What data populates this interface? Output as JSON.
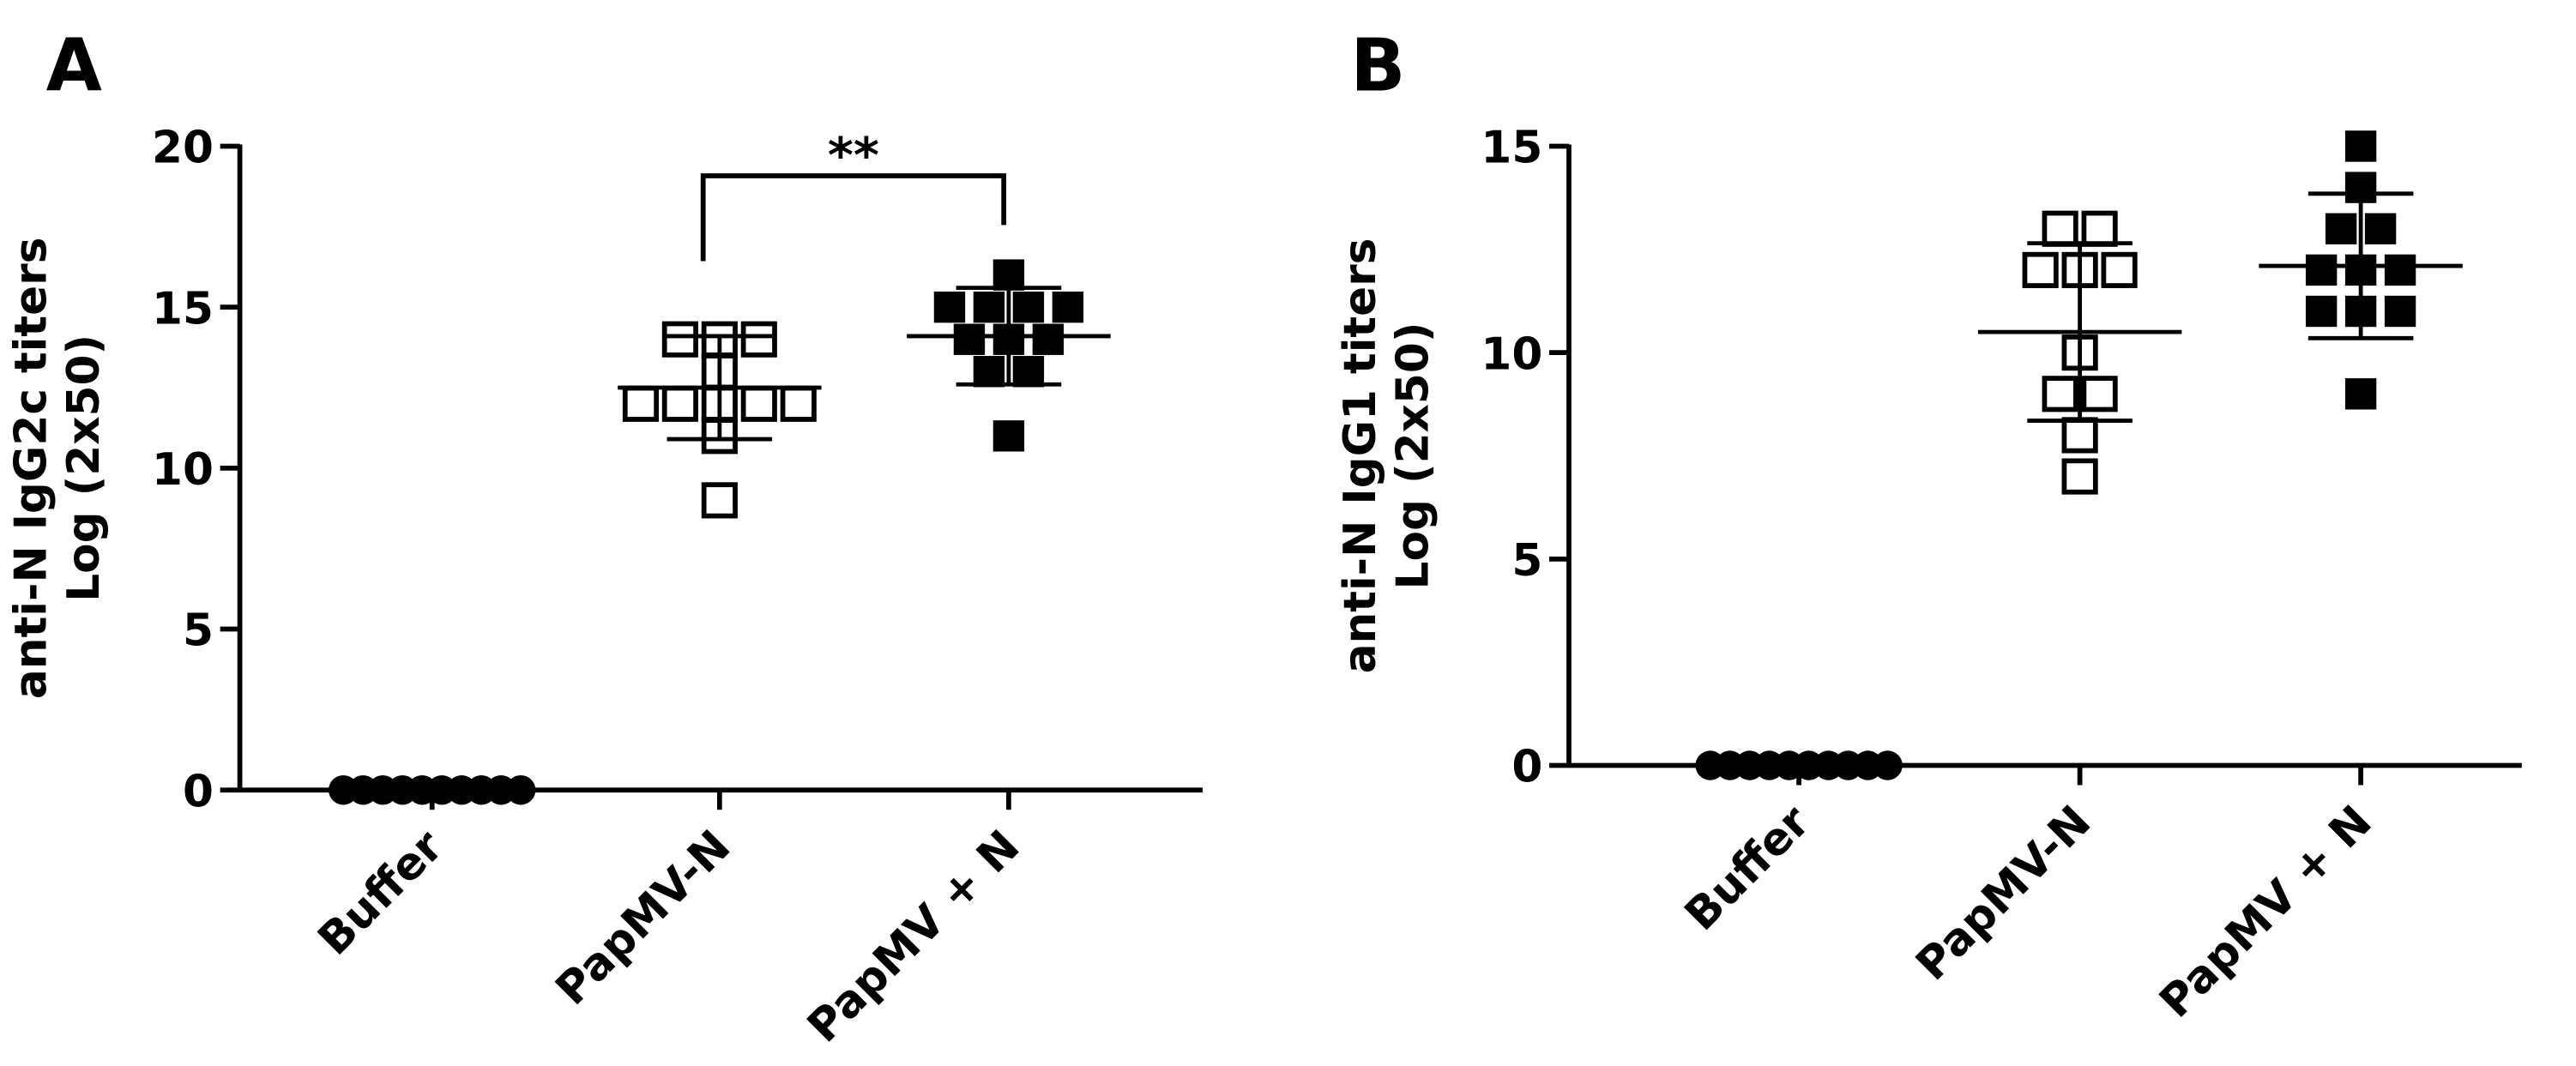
{
  "chart_data": [
    {
      "type": "strip",
      "panel": "A",
      "ylabel": [
        "anti-N IgG2c titers",
        "Log (2x50)"
      ],
      "categories": [
        "Buffer",
        "PapMV-N",
        "PapMV + N"
      ],
      "groups": [
        {
          "name": "Buffer",
          "marker": "circle",
          "color": "#000000",
          "values": [
            0,
            0,
            0,
            0,
            0,
            0,
            0,
            0,
            0,
            0
          ]
        },
        {
          "name": "PapMV-N",
          "marker": "open-square",
          "color": "#000000",
          "values": [
            14,
            14,
            14,
            13,
            12,
            12,
            12,
            12,
            12,
            11,
            9
          ],
          "mean": 12.5,
          "sd": 1.6
        },
        {
          "name": "PapMV + N",
          "marker": "square",
          "color": "#000000",
          "values": [
            16,
            15,
            15,
            15,
            15,
            14,
            14,
            14,
            13,
            13,
            11
          ],
          "mean": 14.1,
          "sd": 1.5
        }
      ],
      "ylim": [
        0,
        20
      ],
      "yticks": [
        0,
        5,
        10,
        15,
        20
      ],
      "annotations": [
        {
          "text": "**",
          "between": [
            1,
            2
          ]
        }
      ]
    },
    {
      "type": "strip",
      "panel": "B",
      "ylabel": [
        "anti-N IgG1 titers",
        "Log (2x50)"
      ],
      "categories": [
        "Buffer",
        "PapMV-N",
        "PapMV + N"
      ],
      "groups": [
        {
          "name": "Buffer",
          "marker": "circle",
          "color": "#000000",
          "values": [
            0,
            0,
            0,
            0,
            0,
            0,
            0,
            0,
            0,
            0
          ]
        },
        {
          "name": "PapMV-N",
          "marker": "open-square",
          "color": "#000000",
          "values": [
            13,
            13,
            12,
            12,
            12,
            10,
            9,
            9,
            8,
            7
          ],
          "mean": 10.5,
          "sd": 2.15
        },
        {
          "name": "PapMV + N",
          "marker": "square",
          "color": "#000000",
          "values": [
            15,
            14,
            13,
            13,
            12,
            12,
            12,
            11,
            11,
            11,
            9
          ],
          "mean": 12.1,
          "sd": 1.75
        }
      ],
      "ylim": [
        0,
        15
      ],
      "yticks": [
        0,
        5,
        10,
        15
      ],
      "annotations": []
    }
  ]
}
